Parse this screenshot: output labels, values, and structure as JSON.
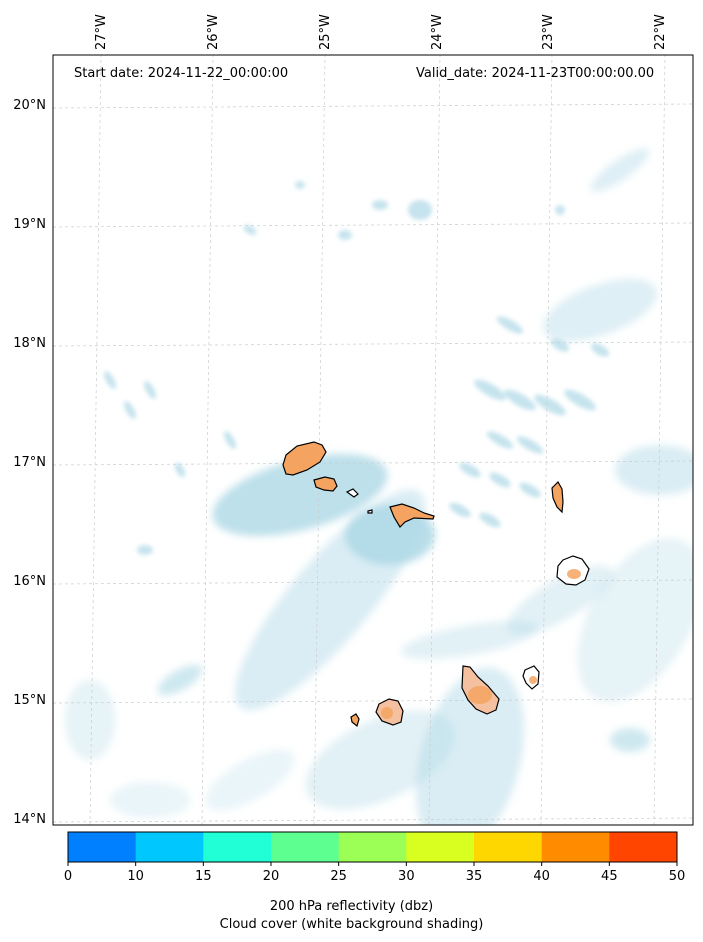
{
  "header": {
    "start_date": "Start date: 2024-11-22_00:00:00",
    "valid_date": "Valid_date: 2024-11-23T00:00:00.00"
  },
  "map": {
    "longitude_labels": [
      "27°W",
      "26°W",
      "25°W",
      "24°W",
      "23°W",
      "22°W"
    ],
    "latitude_labels": [
      "20°N",
      "19°N",
      "18°N",
      "17°N",
      "16°N",
      "15°N",
      "14°N"
    ],
    "land_color": "#f4a460",
    "cloud_color": "#add8e6",
    "gridlines": "dashed"
  },
  "colorbar": {
    "ticks": [
      "0",
      "10",
      "15",
      "20",
      "25",
      "30",
      "35",
      "40",
      "45",
      "50"
    ],
    "colors": [
      "#0080ff",
      "#00c8ff",
      "#20ffd6",
      "#5dff90",
      "#9bff55",
      "#d8ff20",
      "#ffd700",
      "#ff8c00",
      "#ff4500"
    ],
    "label": "200 hPa reflectivity (dbz)",
    "sublabel": "Cloud cover (white background shading)"
  }
}
